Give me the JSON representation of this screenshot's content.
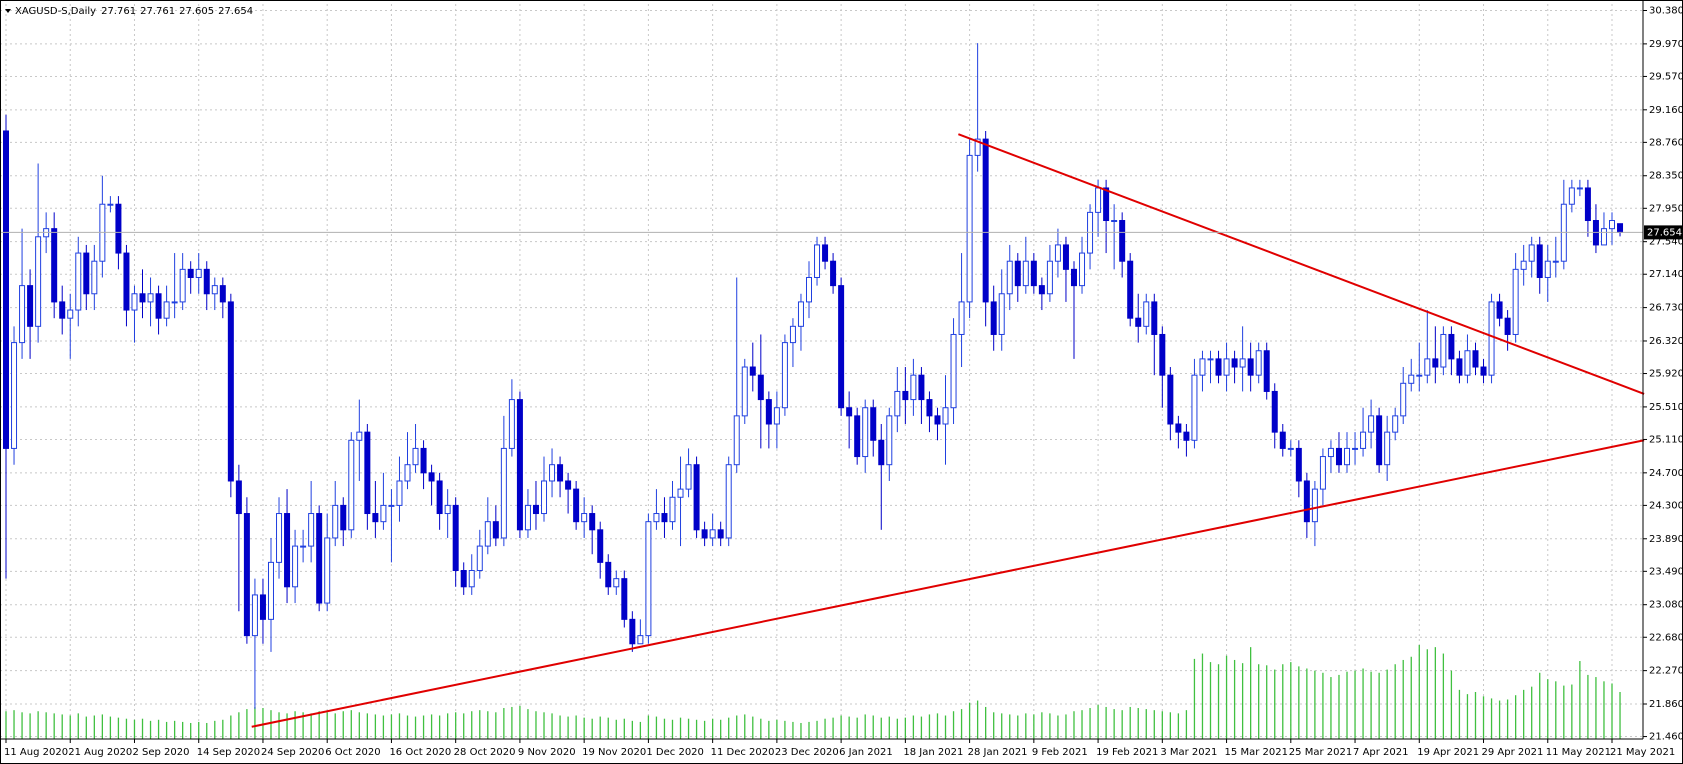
{
  "chart_data": {
    "type": "candlestick",
    "symbol": "XAGUSD-S,Daily",
    "categories": [
      "11 Aug 2020",
      null,
      null,
      null,
      null,
      null,
      null,
      null,
      "21 Aug 2020",
      null,
      null,
      null,
      null,
      null,
      null,
      null,
      "2 Sep 2020",
      null,
      null,
      null,
      null,
      null,
      null,
      null,
      "14 Sep 2020",
      null,
      null,
      null,
      null,
      null,
      null,
      null,
      "24 Sep 2020",
      null,
      null,
      null,
      null,
      null,
      null,
      null,
      "6 Oct 2020",
      null,
      null,
      null,
      null,
      null,
      null,
      null,
      "16 Oct 2020",
      null,
      null,
      null,
      null,
      null,
      null,
      null,
      "28 Oct 2020",
      null,
      null,
      null,
      null,
      null,
      null,
      null,
      "9 Nov 2020",
      null,
      null,
      null,
      null,
      null,
      null,
      null,
      "19 Nov 2020",
      null,
      null,
      null,
      null,
      null,
      null,
      null,
      "1 Dec 2020",
      null,
      null,
      null,
      null,
      null,
      null,
      null,
      "11 Dec 2020",
      null,
      null,
      null,
      null,
      null,
      null,
      null,
      "23 Dec 2020",
      null,
      null,
      null,
      null,
      null,
      null,
      null,
      "6 Jan 2021",
      null,
      null,
      null,
      null,
      null,
      null,
      null,
      "18 Jan 2021",
      null,
      null,
      null,
      null,
      null,
      null,
      null,
      "28 Jan 2021",
      null,
      null,
      null,
      null,
      null,
      null,
      null,
      "9 Feb 2021",
      null,
      null,
      null,
      null,
      null,
      null,
      null,
      "19 Feb 2021",
      null,
      null,
      null,
      null,
      null,
      null,
      null,
      "3 Mar 2021",
      null,
      null,
      null,
      null,
      null,
      null,
      null,
      "15 Mar 2021",
      null,
      null,
      null,
      null,
      null,
      null,
      null,
      "25 Mar 2021",
      null,
      null,
      null,
      null,
      null,
      null,
      null,
      "7 Apr 2021",
      null,
      null,
      null,
      null,
      null,
      null,
      null,
      "19 Apr 2021",
      null,
      null,
      null,
      null,
      null,
      null,
      null,
      "29 Apr 2021",
      null,
      null,
      null,
      null,
      null,
      null,
      null,
      "11 May 2021",
      null,
      null,
      null,
      null,
      null,
      null,
      null,
      "21 May 2021",
      null
    ],
    "open": [
      28.9,
      25.0,
      26.3,
      27.0,
      26.5,
      27.6,
      27.7,
      26.8,
      26.6,
      26.7,
      27.4,
      26.9,
      27.3,
      28.0,
      28.0,
      27.4,
      26.7,
      26.9,
      26.8,
      26.9,
      26.6,
      26.8,
      26.8,
      27.2,
      27.1,
      27.2,
      26.9,
      27.0,
      26.8,
      24.6,
      24.2,
      22.7,
      23.2,
      22.9,
      23.6,
      24.2,
      23.3,
      23.8,
      23.8,
      24.2,
      23.1,
      23.9,
      24.3,
      24.0,
      25.1,
      25.2,
      24.2,
      24.1,
      24.3,
      24.3,
      24.6,
      24.8,
      25.0,
      24.7,
      24.6,
      24.2,
      24.3,
      23.5,
      23.3,
      23.5,
      23.8,
      24.1,
      23.9,
      25.0,
      25.6,
      24.0,
      24.3,
      24.2,
      24.6,
      24.8,
      24.6,
      24.5,
      24.1,
      24.2,
      24.0,
      23.6,
      23.3,
      23.4,
      22.9,
      22.6,
      22.7,
      24.1,
      24.2,
      24.1,
      24.4,
      24.5,
      24.8,
      24.0,
      23.9,
      24.0,
      23.9,
      24.8,
      25.4,
      26.0,
      25.9,
      25.6,
      25.3,
      25.5,
      26.3,
      26.5,
      26.8,
      27.1,
      27.5,
      27.3,
      27.0,
      25.5,
      25.4,
      24.9,
      25.5,
      25.1,
      24.8,
      25.4,
      25.7,
      25.6,
      25.9,
      25.6,
      25.4,
      25.3,
      25.5,
      26.4,
      26.8,
      28.6,
      28.8,
      26.8,
      26.4,
      26.9,
      27.3,
      27.0,
      27.3,
      27.0,
      26.9,
      27.3,
      27.5,
      27.2,
      27.0,
      27.4,
      27.9,
      28.2,
      27.8,
      27.8,
      27.3,
      26.6,
      26.5,
      26.8,
      26.4,
      25.9,
      25.3,
      25.2,
      25.1,
      25.9,
      26.1,
      26.1,
      25.9,
      26.1,
      26.0,
      26.1,
      25.9,
      26.2,
      25.7,
      25.2,
      25.0,
      25.0,
      24.6,
      24.1,
      24.5,
      24.9,
      25.0,
      24.8,
      25.0,
      25.0,
      25.2,
      25.4,
      24.8,
      25.2,
      25.4,
      25.8,
      25.9,
      25.9,
      26.1,
      26.0,
      26.4,
      26.1,
      25.9,
      26.2,
      26.0,
      25.9,
      26.8,
      26.6,
      26.4,
      27.2,
      27.3,
      27.5,
      27.1,
      27.3,
      27.3,
      28.0,
      28.2,
      28.2,
      27.8,
      27.5,
      27.7,
      27.761
    ],
    "high": [
      29.1,
      26.5,
      27.7,
      27.2,
      28.5,
      27.9,
      27.9,
      27.0,
      26.9,
      27.6,
      27.5,
      27.5,
      28.35,
      28.1,
      28.1,
      27.5,
      27.0,
      27.2,
      27.1,
      27.0,
      27.0,
      27.4,
      27.4,
      27.3,
      27.4,
      27.3,
      27.1,
      27.1,
      26.9,
      24.8,
      24.4,
      23.4,
      23.4,
      23.9,
      24.4,
      24.5,
      24.0,
      24.0,
      24.6,
      24.3,
      24.2,
      24.6,
      24.4,
      25.2,
      25.6,
      25.3,
      24.6,
      24.7,
      24.5,
      24.9,
      25.2,
      25.3,
      25.1,
      24.8,
      24.7,
      24.5,
      24.4,
      23.6,
      23.7,
      24.0,
      24.4,
      24.3,
      25.4,
      25.85,
      25.7,
      24.5,
      24.6,
      24.9,
      25.0,
      24.9,
      24.7,
      24.6,
      24.4,
      24.3,
      24.1,
      23.7,
      23.5,
      23.5,
      23.0,
      22.9,
      24.2,
      24.5,
      24.4,
      24.6,
      24.9,
      25.0,
      24.9,
      24.1,
      24.2,
      24.1,
      24.9,
      27.1,
      26.1,
      26.3,
      26.4,
      25.7,
      25.7,
      26.4,
      26.6,
      26.9,
      27.3,
      27.6,
      27.6,
      27.4,
      27.1,
      25.7,
      25.5,
      25.6,
      25.6,
      25.3,
      25.5,
      26.0,
      26.0,
      26.1,
      26.0,
      25.7,
      25.5,
      25.9,
      26.6,
      27.4,
      28.8,
      29.98,
      28.9,
      27.0,
      27.2,
      27.5,
      27.4,
      27.6,
      27.4,
      27.1,
      27.5,
      27.7,
      27.6,
      27.3,
      27.6,
      28.0,
      28.3,
      28.3,
      28.0,
      27.9,
      27.4,
      26.9,
      26.9,
      26.9,
      26.5,
      26.0,
      25.4,
      25.3,
      26.1,
      26.2,
      26.2,
      26.2,
      26.3,
      26.2,
      26.5,
      26.3,
      26.3,
      26.3,
      25.8,
      25.3,
      25.1,
      25.1,
      24.7,
      24.6,
      25.0,
      25.1,
      25.2,
      25.2,
      25.2,
      25.5,
      25.6,
      25.5,
      25.4,
      25.5,
      26.0,
      26.1,
      26.3,
      26.7,
      26.5,
      26.5,
      26.5,
      26.2,
      26.4,
      26.3,
      26.1,
      26.9,
      26.9,
      26.7,
      27.4,
      27.5,
      27.6,
      27.6,
      27.5,
      27.6,
      28.3,
      28.3,
      28.3,
      28.3,
      28.0,
      27.9,
      27.9,
      27.761
    ],
    "low": [
      23.4,
      24.8,
      26.1,
      26.1,
      26.3,
      27.4,
      26.6,
      26.4,
      26.1,
      26.5,
      26.7,
      26.7,
      27.1,
      27.9,
      27.2,
      26.5,
      26.3,
      26.6,
      26.5,
      26.4,
      26.5,
      26.6,
      26.7,
      26.9,
      26.9,
      26.7,
      26.7,
      26.6,
      24.4,
      23.0,
      22.6,
      21.8,
      22.6,
      22.5,
      23.4,
      23.1,
      23.1,
      23.6,
      23.6,
      23.0,
      23.0,
      23.8,
      23.8,
      23.9,
      24.6,
      24.0,
      23.9,
      24.0,
      23.6,
      24.1,
      24.5,
      24.7,
      24.5,
      24.3,
      24.0,
      23.9,
      23.3,
      23.2,
      23.2,
      23.4,
      23.7,
      23.8,
      23.8,
      24.9,
      23.9,
      23.9,
      24.0,
      24.1,
      24.4,
      24.4,
      24.2,
      24.0,
      23.9,
      23.7,
      23.4,
      23.2,
      23.2,
      22.8,
      22.5,
      22.6,
      22.6,
      24.0,
      23.9,
      24.0,
      23.8,
      24.4,
      23.9,
      23.8,
      23.8,
      23.8,
      23.8,
      24.7,
      25.3,
      25.7,
      25.0,
      25.0,
      25.0,
      25.4,
      26.0,
      26.2,
      26.6,
      27.0,
      27.2,
      26.9,
      25.4,
      25.0,
      24.8,
      24.7,
      24.9,
      24.0,
      24.6,
      25.2,
      25.3,
      25.4,
      25.3,
      25.2,
      25.1,
      24.8,
      25.3,
      26.0,
      26.6,
      28.4,
      26.5,
      26.2,
      26.2,
      26.7,
      26.8,
      26.9,
      26.9,
      26.7,
      26.8,
      27.1,
      26.8,
      26.1,
      26.9,
      27.2,
      27.6,
      27.4,
      27.2,
      27.1,
      26.5,
      26.3,
      26.4,
      25.9,
      25.5,
      25.1,
      25.0,
      24.9,
      25.0,
      25.7,
      25.8,
      25.8,
      25.7,
      25.8,
      25.7,
      25.7,
      25.8,
      25.6,
      25.0,
      24.9,
      24.9,
      24.4,
      23.9,
      23.8,
      24.3,
      24.7,
      24.7,
      24.7,
      24.8,
      24.9,
      25.0,
      24.7,
      24.6,
      25.1,
      25.3,
      25.7,
      25.7,
      25.8,
      25.8,
      25.9,
      25.9,
      25.8,
      25.8,
      25.9,
      25.8,
      25.8,
      26.5,
      26.2,
      26.3,
      27.0,
      27.1,
      26.9,
      26.8,
      27.1,
      27.2,
      27.9,
      28.1,
      27.6,
      27.4,
      27.5,
      27.5,
      27.605
    ],
    "close": [
      25.0,
      26.3,
      27.0,
      26.5,
      27.6,
      27.7,
      26.8,
      26.6,
      26.7,
      27.4,
      26.9,
      27.3,
      28.0,
      28.0,
      27.4,
      26.7,
      26.9,
      26.8,
      26.9,
      26.6,
      26.8,
      26.8,
      27.2,
      27.1,
      27.2,
      26.9,
      27.0,
      26.8,
      24.6,
      24.2,
      22.7,
      23.2,
      22.9,
      23.6,
      24.2,
      23.3,
      23.8,
      23.8,
      24.2,
      23.1,
      23.9,
      24.3,
      24.0,
      25.1,
      25.2,
      24.2,
      24.1,
      24.3,
      24.3,
      24.6,
      24.8,
      25.0,
      24.7,
      24.6,
      24.2,
      24.3,
      23.5,
      23.3,
      23.5,
      23.8,
      24.1,
      23.9,
      25.0,
      25.6,
      24.0,
      24.3,
      24.2,
      24.6,
      24.8,
      24.6,
      24.5,
      24.1,
      24.2,
      24.0,
      23.6,
      23.3,
      23.4,
      22.9,
      22.6,
      22.7,
      24.1,
      24.2,
      24.1,
      24.4,
      24.5,
      24.8,
      24.0,
      23.9,
      24.0,
      23.9,
      24.8,
      25.4,
      26.0,
      25.9,
      25.6,
      25.3,
      25.5,
      26.3,
      26.5,
      26.8,
      27.1,
      27.5,
      27.3,
      27.0,
      25.5,
      25.4,
      24.9,
      25.5,
      25.1,
      24.8,
      25.4,
      25.7,
      25.6,
      25.9,
      25.6,
      25.4,
      25.3,
      25.5,
      26.4,
      26.8,
      28.6,
      28.8,
      26.8,
      26.4,
      26.9,
      27.3,
      27.0,
      27.3,
      27.0,
      26.9,
      27.3,
      27.5,
      27.2,
      27.0,
      27.4,
      27.9,
      28.2,
      27.8,
      27.8,
      27.3,
      26.6,
      26.5,
      26.8,
      26.4,
      25.9,
      25.3,
      25.2,
      25.1,
      25.9,
      26.1,
      26.1,
      25.9,
      26.1,
      26.0,
      26.1,
      25.9,
      26.2,
      25.7,
      25.2,
      25.0,
      25.0,
      24.6,
      24.1,
      24.5,
      24.9,
      25.0,
      24.8,
      25.0,
      25.0,
      25.2,
      25.4,
      24.8,
      25.2,
      25.4,
      25.8,
      25.9,
      25.9,
      26.1,
      26.0,
      26.4,
      26.1,
      25.9,
      26.2,
      26.0,
      25.9,
      26.8,
      26.6,
      26.4,
      27.2,
      27.3,
      27.5,
      27.1,
      27.3,
      27.3,
      28.0,
      28.2,
      28.2,
      27.8,
      27.5,
      27.7,
      27.8,
      27.654
    ],
    "volume": [
      26,
      27,
      25,
      24,
      26,
      25,
      24,
      23,
      22,
      24,
      21,
      22,
      23,
      21,
      20,
      19,
      18,
      19,
      17,
      18,
      16,
      17,
      16,
      15,
      16,
      15,
      17,
      18,
      22,
      25,
      28,
      30,
      29,
      27,
      25,
      24,
      26,
      25,
      24,
      26,
      25,
      24,
      26,
      27,
      25,
      24,
      23,
      22,
      23,
      24,
      22,
      21,
      22,
      23,
      22,
      24,
      25,
      24,
      26,
      27,
      26,
      25,
      29,
      30,
      31,
      28,
      26,
      25,
      24,
      22,
      21,
      22,
      20,
      19,
      21,
      20,
      18,
      19,
      17,
      16,
      22,
      21,
      19,
      18,
      20,
      19,
      18,
      17,
      19,
      18,
      20,
      22,
      23,
      21,
      19,
      17,
      18,
      17,
      16,
      15,
      16,
      17,
      19,
      20,
      22,
      21,
      20,
      23,
      22,
      20,
      21,
      19,
      20,
      22,
      21,
      23,
      24,
      22,
      26,
      28,
      34,
      36,
      30,
      25,
      24,
      23,
      22,
      24,
      23,
      25,
      24,
      22,
      23,
      26,
      27,
      29,
      32,
      30,
      28,
      27,
      30,
      29,
      28,
      27,
      26,
      25,
      24,
      27,
      75,
      80,
      72,
      70,
      78,
      74,
      71,
      86,
      70,
      69,
      65,
      70,
      72,
      68,
      66,
      64,
      62,
      58,
      60,
      63,
      64,
      66,
      63,
      62,
      65,
      70,
      74,
      77,
      88,
      84,
      86,
      80,
      64,
      46,
      42,
      44,
      40,
      38,
      36,
      37,
      41,
      46,
      49,
      62,
      56,
      54,
      50,
      51,
      73,
      60,
      58,
      54,
      52,
      44
    ],
    "bull_color": "#2040e0",
    "bear_color": "#0000c8",
    "volume_color": "#40c040",
    "trendline_color": "#e00000",
    "price_line_color": "#b0b0b0",
    "ylim": [
      21.43,
      30.46
    ],
    "yticks": [
      {
        "value": 21.46,
        "label": "21.460"
      },
      {
        "value": 21.86,
        "label": "21.860"
      },
      {
        "value": 22.27,
        "label": "22.270"
      },
      {
        "value": 22.68,
        "label": "22.680"
      },
      {
        "value": 23.08,
        "label": "23.080"
      },
      {
        "value": 23.49,
        "label": "23.490"
      },
      {
        "value": 23.89,
        "label": "23.890"
      },
      {
        "value": 24.3,
        "label": "24.300"
      },
      {
        "value": 24.7,
        "label": "24.700"
      },
      {
        "value": 25.11,
        "label": "25.110"
      },
      {
        "value": 25.51,
        "label": "25.510"
      },
      {
        "value": 25.92,
        "label": "25.920"
      },
      {
        "value": 26.32,
        "label": "26.320"
      },
      {
        "value": 26.73,
        "label": "26.730"
      },
      {
        "value": 27.14,
        "label": "27.140"
      },
      {
        "value": 27.54,
        "label": "27.540"
      },
      {
        "value": 27.95,
        "label": "27.950"
      },
      {
        "value": 28.35,
        "label": "28.350"
      },
      {
        "value": 28.76,
        "label": "28.760"
      },
      {
        "value": 29.16,
        "label": "29.160"
      },
      {
        "value": 29.57,
        "label": "29.570"
      },
      {
        "value": 29.97,
        "label": "29.970"
      },
      {
        "value": 30.38,
        "label": "30.380"
      }
    ],
    "grid": true,
    "trendlines": [
      {
        "x": [
          30.6,
          204
        ],
        "y": [
          21.58,
          25.1
        ]
      },
      {
        "x": [
          118.6,
          204
        ],
        "y": [
          28.86,
          25.67
        ]
      }
    ]
  }
}
